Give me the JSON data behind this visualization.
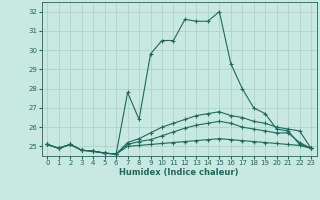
{
  "title": "",
  "xlabel": "Humidex (Indice chaleur)",
  "ylabel": "",
  "xlim": [
    -0.5,
    23.5
  ],
  "ylim": [
    24.5,
    32.5
  ],
  "yticks": [
    25,
    26,
    27,
    28,
    29,
    30,
    31,
    32
  ],
  "xticks": [
    0,
    1,
    2,
    3,
    4,
    5,
    6,
    7,
    8,
    9,
    10,
    11,
    12,
    13,
    14,
    15,
    16,
    17,
    18,
    19,
    20,
    21,
    22,
    23
  ],
  "background_color": "#c8e8e0",
  "grid_color": "#aad4cc",
  "line_color": "#1a6b5a",
  "lines": [
    {
      "x": [
        0,
        1,
        2,
        3,
        4,
        5,
        6,
        7,
        8,
        9,
        10,
        11,
        12,
        13,
        14,
        15,
        16,
        17,
        18,
        19,
        20,
        21,
        22,
        23
      ],
      "y": [
        25.1,
        24.9,
        25.1,
        24.8,
        24.75,
        24.65,
        24.6,
        27.8,
        26.4,
        29.8,
        30.5,
        30.5,
        31.6,
        31.5,
        31.5,
        32.0,
        29.3,
        28.0,
        27.0,
        26.7,
        25.9,
        25.8,
        25.1,
        24.9
      ]
    },
    {
      "x": [
        0,
        1,
        2,
        3,
        4,
        5,
        6,
        7,
        8,
        9,
        10,
        11,
        12,
        13,
        14,
        15,
        16,
        17,
        18,
        19,
        20,
        21,
        22,
        23
      ],
      "y": [
        25.1,
        24.9,
        25.1,
        24.8,
        24.75,
        24.65,
        24.6,
        25.2,
        25.4,
        25.7,
        26.0,
        26.2,
        26.4,
        26.6,
        26.7,
        26.8,
        26.6,
        26.5,
        26.3,
        26.2,
        26.0,
        25.9,
        25.8,
        24.9
      ]
    },
    {
      "x": [
        0,
        1,
        2,
        3,
        4,
        5,
        6,
        7,
        8,
        9,
        10,
        11,
        12,
        13,
        14,
        15,
        16,
        17,
        18,
        19,
        20,
        21,
        22,
        23
      ],
      "y": [
        25.1,
        24.9,
        25.1,
        24.8,
        24.75,
        24.65,
        24.6,
        25.1,
        25.25,
        25.35,
        25.55,
        25.75,
        25.95,
        26.1,
        26.2,
        26.3,
        26.2,
        26.0,
        25.9,
        25.8,
        25.7,
        25.7,
        25.2,
        24.9
      ]
    },
    {
      "x": [
        0,
        1,
        2,
        3,
        4,
        5,
        6,
        7,
        8,
        9,
        10,
        11,
        12,
        13,
        14,
        15,
        16,
        17,
        18,
        19,
        20,
        21,
        22,
        23
      ],
      "y": [
        25.1,
        24.9,
        25.1,
        24.8,
        24.75,
        24.65,
        24.6,
        25.0,
        25.05,
        25.1,
        25.15,
        25.2,
        25.25,
        25.3,
        25.35,
        25.4,
        25.35,
        25.3,
        25.25,
        25.2,
        25.15,
        25.1,
        25.05,
        24.9
      ]
    }
  ]
}
